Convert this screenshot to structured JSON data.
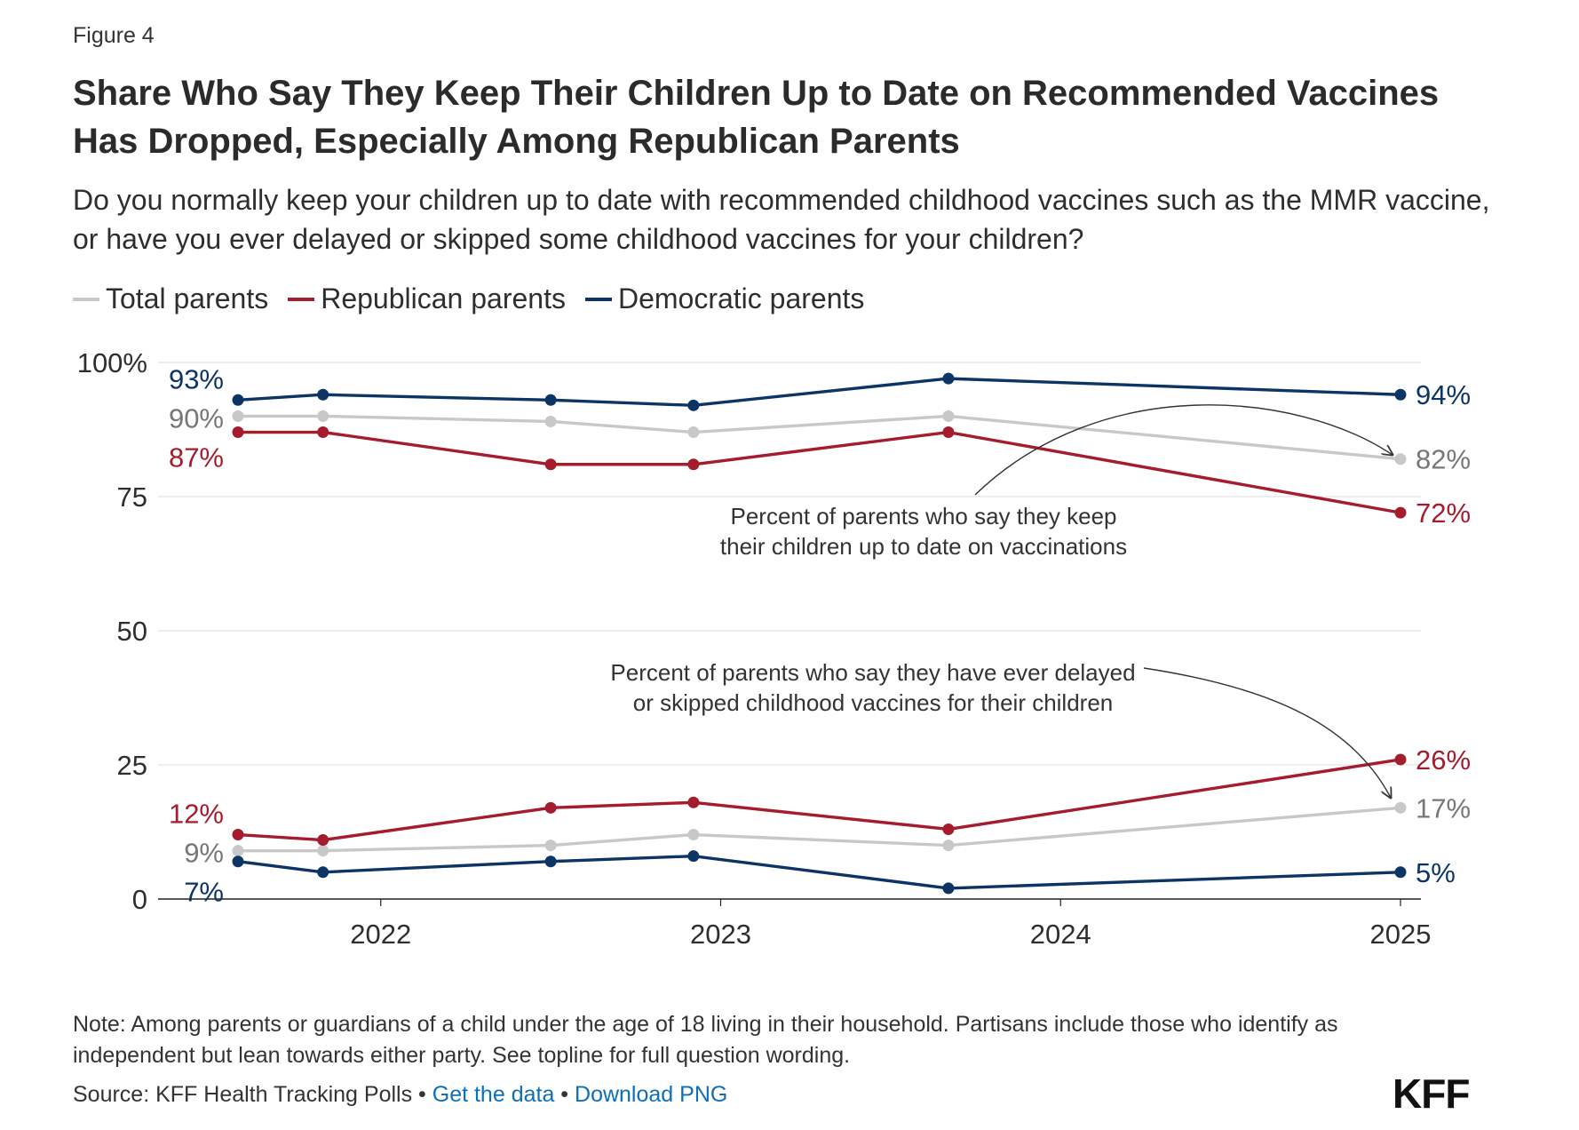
{
  "figure_label": "Figure 4",
  "title": "Share Who Say They Keep Their Children Up to Date on Recommended Vaccines Has Dropped, Especially Among Republican Parents",
  "subtitle": "Do you normally keep your children up to date with recommended childhood vaccines such as the MMR vaccine, or have you ever delayed or skipped some childhood vaccines for your children?",
  "colors": {
    "total": "#c8c8c8",
    "republican": "#a51c2d",
    "democratic": "#0c3566",
    "grid": "#dddddd",
    "axis": "#222222",
    "link": "#0d6fb8"
  },
  "chart_data": {
    "type": "line",
    "title": "Share Who Say They Keep Their Children Up to Date on Recommended Vaccines Has Dropped, Especially Among Republican Parents",
    "xlabel": "",
    "ylabel": "",
    "ylim": [
      0,
      100
    ],
    "y_ticks": [
      0,
      25,
      50,
      75,
      100
    ],
    "y_tick_labels": [
      "0",
      "25",
      "50",
      "75",
      "100%"
    ],
    "xlim": [
      2021.45,
      2025.08
    ],
    "x_ticks": [
      2022,
      2023,
      2024,
      2025
    ],
    "x_tick_labels": [
      "2022",
      "2023",
      "2024",
      "2025"
    ],
    "grid": true,
    "legend_position": "top-left",
    "legend": [
      "Total parents",
      "Republican parents",
      "Democratic parents"
    ],
    "x": [
      2021.58,
      2021.83,
      2022.5,
      2022.92,
      2023.67,
      2025.0
    ],
    "series": [
      {
        "key": "total",
        "group": "up_to_date",
        "name": "Total parents",
        "values": [
          90,
          90,
          89,
          87,
          90,
          82
        ],
        "start_label": "90%",
        "end_label": "82%"
      },
      {
        "key": "republican",
        "group": "up_to_date",
        "name": "Republican parents",
        "values": [
          87,
          87,
          81,
          81,
          87,
          72
        ],
        "start_label": "87%",
        "end_label": "72%"
      },
      {
        "key": "democratic",
        "group": "up_to_date",
        "name": "Democratic parents",
        "values": [
          93,
          94,
          93,
          92,
          97,
          94
        ],
        "start_label": "93%",
        "end_label": "94%"
      },
      {
        "key": "total",
        "group": "delayed",
        "name": "Total parents",
        "values": [
          9,
          9,
          10,
          12,
          10,
          17
        ],
        "start_label": "9%",
        "end_label": "17%"
      },
      {
        "key": "republican",
        "group": "delayed",
        "name": "Republican parents",
        "values": [
          12,
          11,
          17,
          18,
          13,
          26
        ],
        "start_label": "12%",
        "end_label": "26%"
      },
      {
        "key": "democratic",
        "group": "delayed",
        "name": "Democratic parents",
        "values": [
          7,
          5,
          7,
          8,
          2,
          5
        ],
        "start_label": "7%",
        "end_label": "5%"
      }
    ],
    "annotations": [
      {
        "name": "annotation-up-to-date",
        "lines": [
          "Percent of parents who say they  keep",
          "their children up to date on vaccinations"
        ]
      },
      {
        "name": "annotation-delayed",
        "lines": [
          "Percent of parents who say they have ever delayed",
          "or skipped childhood vaccines for their children"
        ]
      }
    ]
  },
  "note": "Note: Among parents or guardians of a child under the age of 18 living in their household. Partisans include those who identify as independent but lean towards either party. See topline for full question wording.",
  "source": {
    "prefix": "Source: KFF Health Tracking Polls",
    "separator": " • ",
    "get_data": "Get the data",
    "download": "Download PNG"
  },
  "logo": "KFF"
}
